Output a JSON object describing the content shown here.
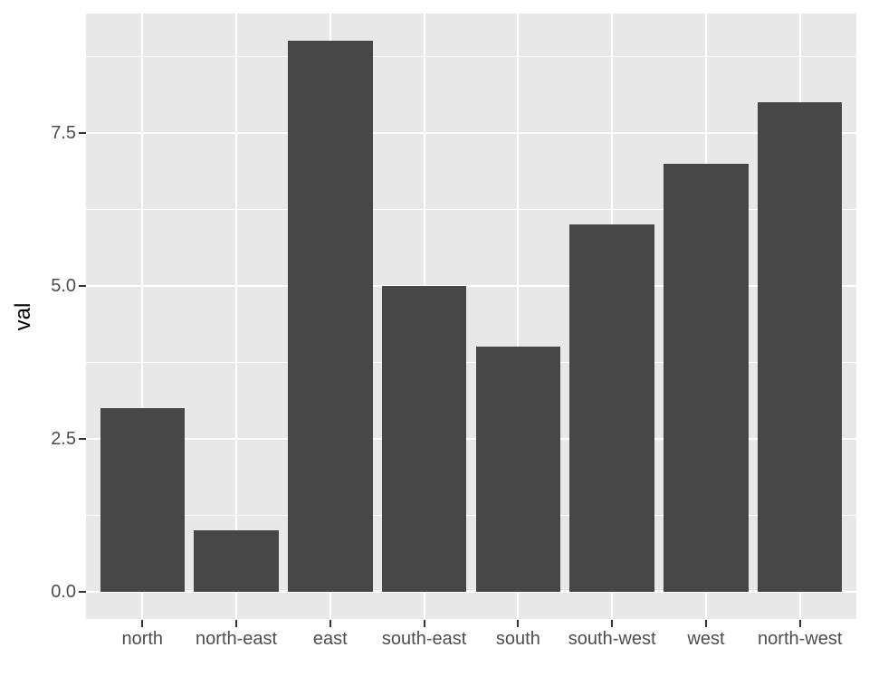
{
  "chart_data": {
    "type": "bar",
    "categories": [
      "north",
      "north-east",
      "east",
      "south-east",
      "south",
      "south-west",
      "west",
      "north-west"
    ],
    "values": [
      3,
      1,
      9,
      5,
      4,
      6,
      7,
      8
    ],
    "title": "",
    "xlabel": "",
    "ylabel": "val",
    "ylim": [
      -0.45,
      9.45
    ],
    "yticks": [
      0.0,
      2.5,
      5.0,
      7.5
    ],
    "ytick_labels": [
      "0.0",
      "2.5",
      "5.0",
      "7.5"
    ],
    "yminor_ticks": [
      1.25,
      3.75,
      6.25,
      8.75
    ],
    "grid": "on",
    "legend": "none",
    "bar_width_fraction": 0.9,
    "style": "ggplot2-grey-theme",
    "colors": {
      "bar_fill": "#474747",
      "panel_background": "#E8E8E8",
      "gridline": "#FFFFFF",
      "axis_text": "#4D4D4D",
      "tick_mark": "#333333",
      "axis_title": "#000000",
      "figure_background": "#FFFFFF"
    }
  }
}
